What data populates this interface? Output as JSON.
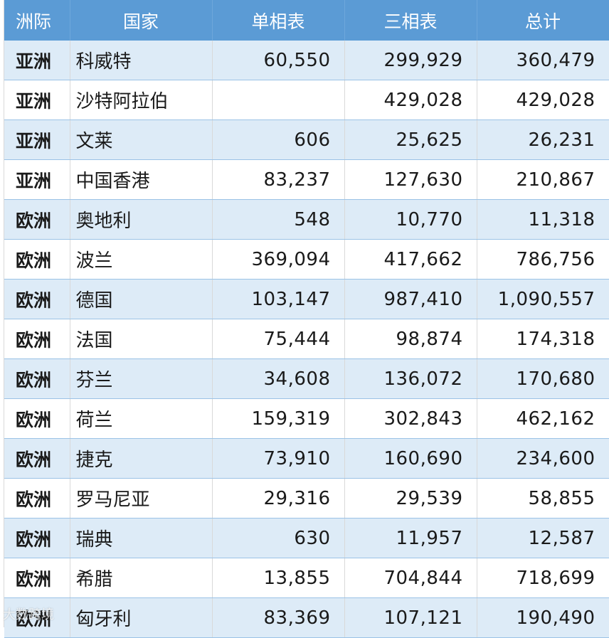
{
  "table": {
    "headers": [
      "洲际",
      "国家",
      "单相表",
      "三相表",
      "总计"
    ],
    "rows": [
      {
        "continent": "亚洲",
        "country": "科威特",
        "single": "60,550",
        "three": "299,929",
        "total": "360,479"
      },
      {
        "continent": "亚洲",
        "country": "沙特阿拉伯",
        "single": "",
        "three": "429,028",
        "total": "429,028"
      },
      {
        "continent": "亚洲",
        "country": "文莱",
        "single": "606",
        "three": "25,625",
        "total": "26,231"
      },
      {
        "continent": "亚洲",
        "country": "中国香港",
        "single": "83,237",
        "three": "127,630",
        "total": "210,867"
      },
      {
        "continent": "欧洲",
        "country": "奥地利",
        "single": "548",
        "three": "10,770",
        "total": "11,318"
      },
      {
        "continent": "欧洲",
        "country": "波兰",
        "single": "369,094",
        "three": "417,662",
        "total": "786,756"
      },
      {
        "continent": "欧洲",
        "country": "德国",
        "single": "103,147",
        "three": "987,410",
        "total": "1,090,557"
      },
      {
        "continent": "欧洲",
        "country": "法国",
        "single": "75,444",
        "three": "98,874",
        "total": "174,318"
      },
      {
        "continent": "欧洲",
        "country": "芬兰",
        "single": "34,608",
        "three": "136,072",
        "total": "170,680"
      },
      {
        "continent": "欧洲",
        "country": "荷兰",
        "single": "159,319",
        "three": "302,843",
        "total": "462,162"
      },
      {
        "continent": "欧洲",
        "country": "捷克",
        "single": "73,910",
        "three": "160,690",
        "total": "234,600"
      },
      {
        "continent": "欧洲",
        "country": "罗马尼亚",
        "single": "29,316",
        "three": "29,539",
        "total": "58,855"
      },
      {
        "continent": "欧洲",
        "country": "瑞典",
        "single": "630",
        "three": "11,957",
        "total": "12,587"
      },
      {
        "continent": "欧洲",
        "country": "希腊",
        "single": "13,855",
        "three": "704,844",
        "total": "718,699"
      },
      {
        "continent": "欧洲",
        "country": "匈牙利",
        "single": "83,369",
        "three": "107,121",
        "total": "190,490"
      }
    ]
  },
  "watermark": "大数跨境",
  "colors": {
    "header_bg": "#5b9bd5",
    "band_bg": "#ddebf7",
    "header_text": "#ffffff"
  }
}
